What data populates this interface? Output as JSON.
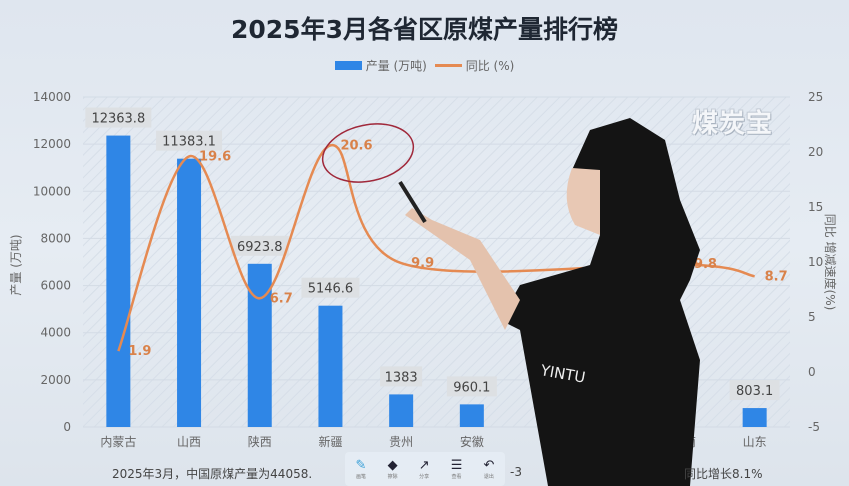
{
  "chart_data": {
    "type": "bar+line",
    "title": "2025年3月各省区原煤产量排行榜",
    "categories": [
      "内蒙古",
      "山西",
      "陕西",
      "新疆",
      "贵州",
      "安徽",
      null,
      null,
      "…南",
      "山东"
    ],
    "series": [
      {
        "name": "产量 (万吨)",
        "type": "bar",
        "axis": "left",
        "color": "#2f86e6",
        "values": [
          12363.8,
          11383.1,
          6923.8,
          5146.6,
          1383,
          960.1,
          null,
          null,
          null,
          803.1
        ]
      },
      {
        "name": "同比 (%)",
        "type": "line",
        "axis": "right",
        "color": "#e58a52",
        "smooth": true,
        "values": [
          1.9,
          19.6,
          6.7,
          20.6,
          9.9,
          null,
          null,
          null,
          9.8,
          8.7
        ]
      }
    ],
    "ylabel": "产量 (万吨)",
    "ylabel_right": "同比 增减速度(%)",
    "ylim": [
      0,
      14000
    ],
    "ylim_right": [
      -5,
      25
    ],
    "yticks": [
      0,
      2000,
      4000,
      6000,
      8000,
      10000,
      12000,
      14000
    ],
    "yticks_right": [
      -5,
      0,
      5,
      10,
      15,
      20,
      25
    ],
    "legend": "top-center",
    "grid": true
  },
  "caption_left": "2025年3月，中国原煤产量为44058.",
  "caption_mid": "-3",
  "caption_right": "同比增长8.1%",
  "watermark": "煤炭宝",
  "toolbar": [
    {
      "icon": "pen-icon",
      "glyph": "✎",
      "label": "画笔"
    },
    {
      "icon": "eraser-icon",
      "glyph": "◆",
      "label": "擦除"
    },
    {
      "icon": "share-icon",
      "glyph": "↗",
      "label": "分享"
    },
    {
      "icon": "list-icon",
      "glyph": "☰",
      "label": "查看"
    },
    {
      "icon": "undo-icon",
      "glyph": "↶",
      "label": "退出"
    }
  ],
  "shirt_text": "YINTU"
}
